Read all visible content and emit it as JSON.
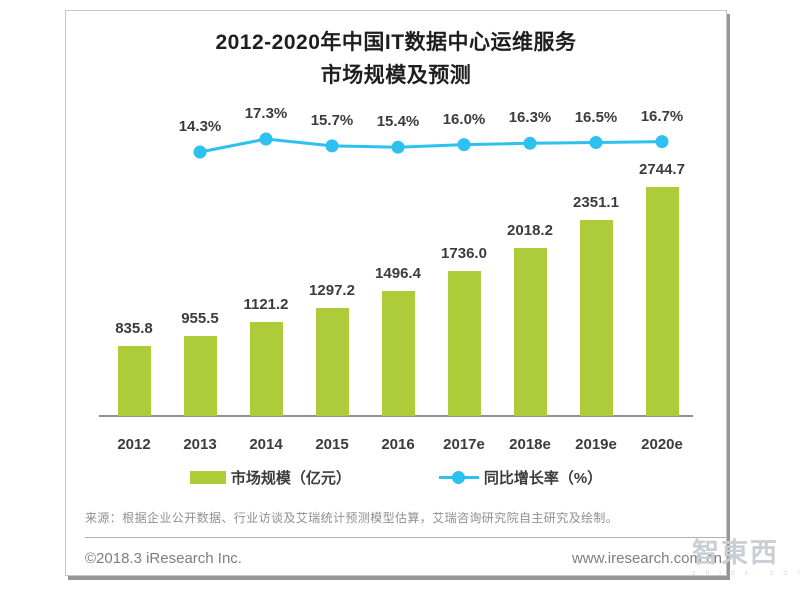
{
  "header": {
    "title_line1": "2012-2020年中国IT数据中心运维服务",
    "title_line2": "市场规模及预测"
  },
  "chart_data": {
    "type": "bar+line",
    "title": "2012-2020年中国IT数据中心运维服务市场规模及预测",
    "categories": [
      "2012",
      "2013",
      "2014",
      "2015",
      "2016",
      "2017e",
      "2018e",
      "2019e",
      "2020e"
    ],
    "series": [
      {
        "name": "市场规模（亿元）",
        "type": "bar",
        "color": "#aecb3a",
        "unit": "亿元",
        "values": [
          835.8,
          955.5,
          1121.2,
          1297.2,
          1496.4,
          1736.0,
          2018.2,
          2351.1,
          2744.7
        ],
        "labels": [
          "835.8",
          "955.5",
          "1121.2",
          "1297.2",
          "1496.4",
          "1736.0",
          "2018.2",
          "2351.1",
          "2744.7"
        ]
      },
      {
        "name": "同比增长率（%）",
        "type": "line",
        "color": "#2cc1ee",
        "unit": "%",
        "values": [
          null,
          14.3,
          17.3,
          15.7,
          15.4,
          16.0,
          16.3,
          16.5,
          16.7
        ],
        "labels": [
          null,
          "14.3%",
          "17.3%",
          "15.7%",
          "15.4%",
          "16.0%",
          "16.3%",
          "16.5%",
          "16.7%"
        ]
      }
    ],
    "legend_position": "bottom",
    "grid": false,
    "ylim_bar": [
      0,
      2744.7
    ]
  },
  "source_note": "来源：根据企业公开数据、行业访谈及艾瑞统计预测模型估算，艾瑞咨询研究院自主研究及绘制。",
  "footer": {
    "copyright": "©2018.3 iResearch Inc.",
    "website": "www.iresearch.com.cn"
  },
  "watermark": {
    "text": "智東西",
    "subtext": "z h i d x . c o m"
  }
}
